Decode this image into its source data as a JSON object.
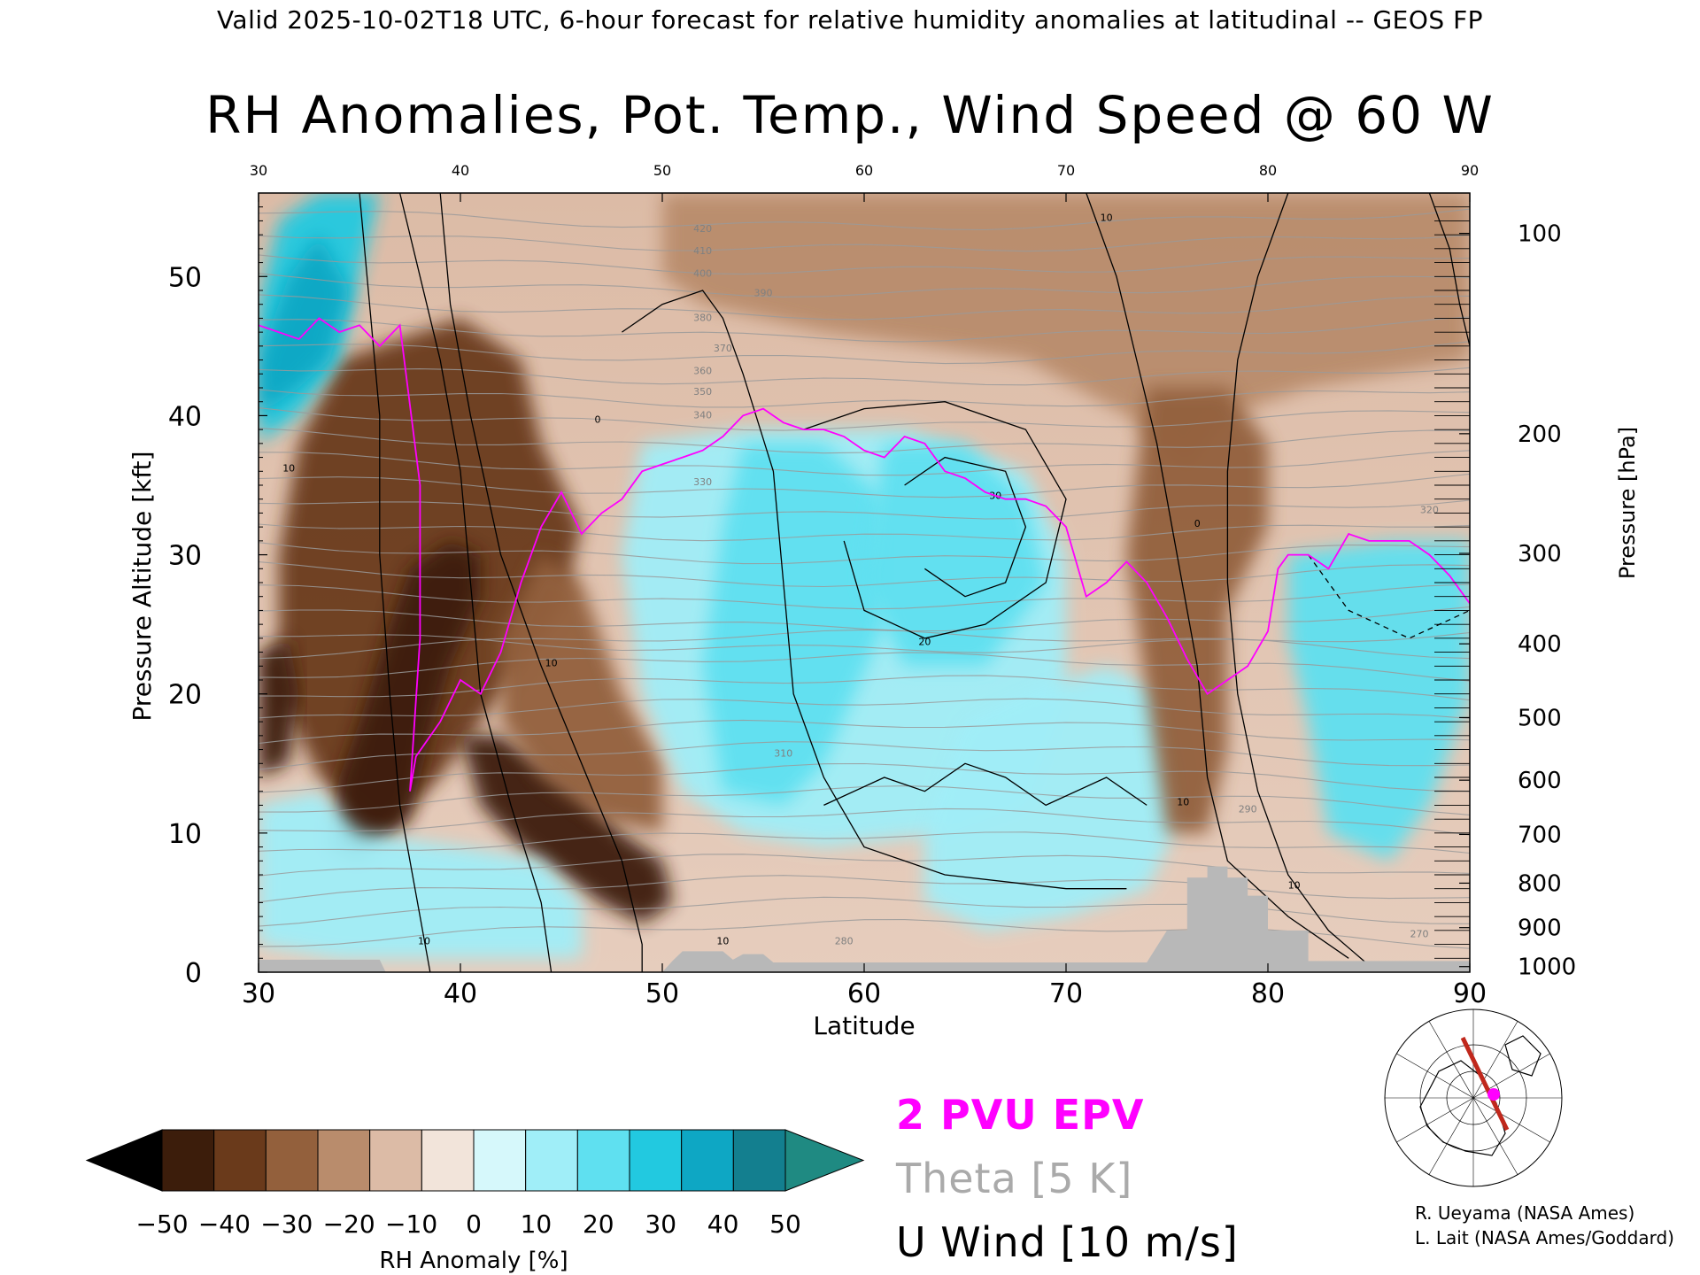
{
  "header": "Valid 2025-10-02T18 UTC, 6-hour forecast for relative humidity anomalies at latitudinal -- GEOS FP",
  "chart_data": {
    "type": "heatmap",
    "title": "RH Anomalies, Pot. Temp., Wind Speed @ 60 W",
    "xlabel": "Latitude",
    "ylabel": "Pressure Altitude [kft]",
    "y2label": "Pressure [hPa]",
    "xlim": [
      30,
      90
    ],
    "ylim": [
      0,
      56
    ],
    "x_ticks": [
      30,
      40,
      50,
      60,
      70,
      80,
      90
    ],
    "y_ticks": [
      0,
      10,
      20,
      30,
      40,
      50
    ],
    "pressure_ticks": [
      {
        "hPa": 100,
        "kft": 53.1
      },
      {
        "hPa": 200,
        "kft": 38.7
      },
      {
        "hPa": 300,
        "kft": 30.1
      },
      {
        "hPa": 400,
        "kft": 23.6
      },
      {
        "hPa": 500,
        "kft": 18.3
      },
      {
        "hPa": 600,
        "kft": 13.8
      },
      {
        "hPa": 700,
        "kft": 9.9
      },
      {
        "hPa": 800,
        "kft": 6.4
      },
      {
        "hPa": 900,
        "kft": 3.2
      },
      {
        "hPa": 1000,
        "kft": 0.4
      }
    ],
    "theta_labels": [
      "420",
      "410",
      "400",
      "390",
      "380",
      "370",
      "360",
      "350",
      "340",
      "330",
      "320",
      "310",
      "290",
      "280",
      "270"
    ],
    "wind_labels": [
      "10",
      "10",
      "10",
      "0",
      "20",
      "30",
      "10",
      "0",
      "10",
      "10",
      "10"
    ],
    "colorbar": {
      "label": "RH Anomaly [%]",
      "ticks": [
        -50,
        -40,
        -30,
        -20,
        -10,
        0,
        10,
        20,
        30,
        40,
        50
      ],
      "colors": [
        "#000000",
        "#3c1d0b",
        "#6a3a1b",
        "#93603c",
        "#b98c6c",
        "#dcbba6",
        "#f2e4da",
        "#d6f8fb",
        "#a0eef8",
        "#5fe0f0",
        "#22c9e0",
        "#0ea7c4",
        "#137f8f",
        "#1f8a82"
      ]
    },
    "legend": [
      {
        "label": "2 PVU EPV",
        "color": "#ff00ff"
      },
      {
        "label": "Theta [5 K]",
        "color": "#aaaaaa"
      },
      {
        "label": "U Wind [10 m/s]",
        "color": "#000000"
      }
    ],
    "terrain": [
      [
        30,
        0.9
      ],
      [
        36,
        0.9
      ],
      [
        36.3,
        0
      ],
      [
        50,
        0
      ],
      [
        50.5,
        0.8
      ],
      [
        51,
        1.5
      ],
      [
        53,
        1.5
      ],
      [
        53.5,
        0.9
      ],
      [
        54,
        1.3
      ],
      [
        55,
        1.3
      ],
      [
        55.5,
        0.7
      ],
      [
        65,
        0.7
      ],
      [
        74,
        0.7
      ],
      [
        75,
        3.0
      ],
      [
        76,
        3.0
      ],
      [
        76,
        6.8
      ],
      [
        77,
        6.8
      ],
      [
        77,
        7.6
      ],
      [
        78,
        7.6
      ],
      [
        78,
        6.8
      ],
      [
        79,
        6.8
      ],
      [
        79,
        5.5
      ],
      [
        80,
        5.5
      ],
      [
        80,
        3.0
      ],
      [
        82,
        3.0
      ],
      [
        82,
        0.8
      ],
      [
        85,
        0.8
      ],
      [
        90,
        0.8
      ]
    ],
    "epv_2pvu": [
      [
        30,
        46.5
      ],
      [
        31,
        46.0
      ],
      [
        32,
        45.5
      ],
      [
        33,
        47.0
      ],
      [
        34,
        46.0
      ],
      [
        35,
        46.5
      ],
      [
        36,
        45.0
      ],
      [
        37,
        46.5
      ],
      [
        38,
        35.0
      ],
      [
        38,
        24.0
      ],
      [
        37.5,
        13.0
      ],
      [
        37.8,
        15.5
      ],
      [
        39,
        18.0
      ],
      [
        40,
        21.0
      ],
      [
        41,
        20.0
      ],
      [
        42,
        23.0
      ],
      [
        43,
        28.0
      ],
      [
        44,
        32.0
      ],
      [
        45,
        34.5
      ],
      [
        46,
        31.5
      ],
      [
        47,
        33.0
      ],
      [
        48,
        34.0
      ],
      [
        49,
        36.0
      ],
      [
        50,
        36.5
      ],
      [
        51,
        37.0
      ],
      [
        52,
        37.5
      ],
      [
        53,
        38.5
      ],
      [
        54,
        40.0
      ],
      [
        55,
        40.5
      ],
      [
        56,
        39.5
      ],
      [
        57,
        39.0
      ],
      [
        58,
        39.0
      ],
      [
        59,
        38.5
      ],
      [
        60,
        37.5
      ],
      [
        61,
        37.0
      ],
      [
        62,
        38.5
      ],
      [
        63,
        38.0
      ],
      [
        64,
        36.0
      ],
      [
        65,
        35.5
      ],
      [
        66,
        34.5
      ],
      [
        67,
        34.0
      ],
      [
        68,
        34.0
      ],
      [
        69,
        33.5
      ],
      [
        70,
        32.0
      ],
      [
        71,
        27.0
      ],
      [
        72,
        28.0
      ],
      [
        73,
        29.5
      ],
      [
        74,
        28.0
      ],
      [
        75,
        25.5
      ],
      [
        76,
        22.5
      ],
      [
        77,
        20.0
      ],
      [
        78,
        21.0
      ],
      [
        79,
        22.0
      ],
      [
        80,
        24.5
      ],
      [
        80.5,
        29.0
      ],
      [
        81,
        30.0
      ],
      [
        82,
        30.0
      ],
      [
        83,
        29.0
      ],
      [
        84,
        31.5
      ],
      [
        85,
        31.0
      ],
      [
        86,
        31.0
      ],
      [
        87,
        31.0
      ],
      [
        88,
        30.0
      ],
      [
        89,
        28.5
      ],
      [
        90,
        26.5
      ]
    ],
    "rh_fields": [
      {
        "value": -40,
        "region": [
          [
            38,
            46
          ],
          [
            40,
            47
          ],
          [
            43,
            44
          ],
          [
            44,
            38
          ],
          [
            46,
            32
          ],
          [
            45,
            26
          ],
          [
            42,
            20
          ],
          [
            39,
            14
          ],
          [
            36,
            10
          ],
          [
            33,
            14
          ],
          [
            31,
            20
          ],
          [
            31,
            30
          ],
          [
            32,
            38
          ],
          [
            34,
            44
          ]
        ]
      },
      {
        "value": -50,
        "region": [
          [
            36.5,
            25
          ],
          [
            37.5,
            29
          ],
          [
            39.5,
            31
          ],
          [
            41,
            30
          ],
          [
            41,
            27
          ],
          [
            39.5,
            22
          ],
          [
            38.5,
            17
          ],
          [
            37.5,
            11
          ],
          [
            35,
            8
          ],
          [
            33.5,
            9
          ],
          [
            34,
            14
          ],
          [
            35,
            18
          ]
        ]
      },
      {
        "value": -50,
        "region": [
          [
            40,
            17
          ],
          [
            42,
            17
          ],
          [
            44,
            15
          ],
          [
            46,
            13
          ],
          [
            48,
            10
          ],
          [
            50,
            8
          ],
          [
            50.5,
            5
          ],
          [
            49,
            3.5
          ],
          [
            47,
            5
          ],
          [
            45,
            7
          ],
          [
            43,
            9
          ],
          [
            41,
            12
          ]
        ]
      },
      {
        "value": -50,
        "region": [
          [
            30,
            23
          ],
          [
            31.5,
            24
          ],
          [
            32,
            20
          ],
          [
            31.5,
            15
          ],
          [
            30,
            14
          ]
        ]
      },
      {
        "value": -30,
        "region": [
          [
            44,
            30
          ],
          [
            46,
            28
          ],
          [
            48,
            20
          ],
          [
            50,
            15
          ],
          [
            50,
            10
          ],
          [
            47,
            11
          ],
          [
            44,
            14
          ],
          [
            42,
            18
          ],
          [
            42,
            24
          ]
        ]
      },
      {
        "value": 20,
        "region": [
          [
            49,
            38
          ],
          [
            54,
            39
          ],
          [
            62,
            39
          ],
          [
            68,
            36
          ],
          [
            70,
            30
          ],
          [
            70,
            20
          ],
          [
            68,
            12
          ],
          [
            64,
            10
          ],
          [
            58,
            9
          ],
          [
            54,
            10
          ],
          [
            51,
            13
          ],
          [
            49,
            20
          ],
          [
            48,
            30
          ]
        ]
      },
      {
        "value": 30,
        "region": [
          [
            54,
            38
          ],
          [
            58,
            38
          ],
          [
            61,
            34
          ],
          [
            61,
            25
          ],
          [
            58,
            15
          ],
          [
            56,
            12
          ],
          [
            53,
            13
          ],
          [
            52,
            22
          ],
          [
            53,
            32
          ]
        ]
      },
      {
        "value": 30,
        "region": [
          [
            61,
            38
          ],
          [
            65,
            38
          ],
          [
            68,
            34
          ],
          [
            69,
            28
          ],
          [
            66,
            22
          ],
          [
            62,
            22
          ],
          [
            60,
            28
          ]
        ]
      },
      {
        "value": 30,
        "region": [
          [
            81,
            30
          ],
          [
            86,
            31
          ],
          [
            90,
            31
          ],
          [
            90,
            20
          ],
          [
            88,
            12
          ],
          [
            86,
            8
          ],
          [
            83,
            10
          ],
          [
            82,
            18
          ],
          [
            81,
            24
          ]
        ]
      },
      {
        "value": 20,
        "region": [
          [
            65,
            18
          ],
          [
            68,
            20
          ],
          [
            72,
            22
          ],
          [
            75,
            20
          ],
          [
            76,
            12
          ],
          [
            74,
            6
          ],
          [
            70,
            4
          ],
          [
            66,
            3
          ],
          [
            63,
            5
          ],
          [
            63,
            10
          ]
        ]
      },
      {
        "value": 20,
        "region": [
          [
            30,
            12
          ],
          [
            33,
            13
          ],
          [
            35,
            10
          ],
          [
            40,
            9
          ],
          [
            44,
            8
          ],
          [
            46,
            5
          ],
          [
            46,
            1
          ],
          [
            40,
            1
          ],
          [
            34,
            1
          ],
          [
            30,
            2
          ]
        ]
      },
      {
        "value": 40,
        "region": [
          [
            30,
            48
          ],
          [
            31,
            54
          ],
          [
            33,
            56
          ],
          [
            36,
            56
          ],
          [
            35,
            50
          ],
          [
            34,
            44
          ],
          [
            32,
            40
          ],
          [
            30,
            38
          ]
        ]
      },
      {
        "value": 50,
        "region": [
          [
            30,
            44
          ],
          [
            31.5,
            50
          ],
          [
            33,
            53
          ],
          [
            34.5,
            49
          ],
          [
            33.5,
            44
          ],
          [
            32,
            42
          ],
          [
            30,
            40
          ]
        ]
      },
      {
        "value": -20,
        "region": [
          [
            50,
            56
          ],
          [
            60,
            56
          ],
          [
            70,
            56
          ],
          [
            90,
            56
          ],
          [
            90,
            44
          ],
          [
            82,
            42
          ],
          [
            78,
            40
          ],
          [
            76,
            36
          ],
          [
            73,
            40
          ],
          [
            68,
            44
          ],
          [
            58,
            46
          ],
          [
            52,
            48
          ],
          [
            50,
            50
          ]
        ]
      },
      {
        "value": -30,
        "region": [
          [
            74,
            42
          ],
          [
            78,
            42
          ],
          [
            80,
            38
          ],
          [
            80,
            32
          ],
          [
            78,
            26
          ],
          [
            78,
            16
          ],
          [
            77,
            10
          ],
          [
            75,
            10
          ],
          [
            74,
            20
          ],
          [
            73,
            30
          ]
        ]
      }
    ]
  },
  "minimap": {
    "marker_color": "#ff00ff",
    "line_color": "#c0281c"
  },
  "credits": [
    "R. Ueyama (NASA Ames)",
    "L. Lait (NASA Ames/Goddard)"
  ]
}
